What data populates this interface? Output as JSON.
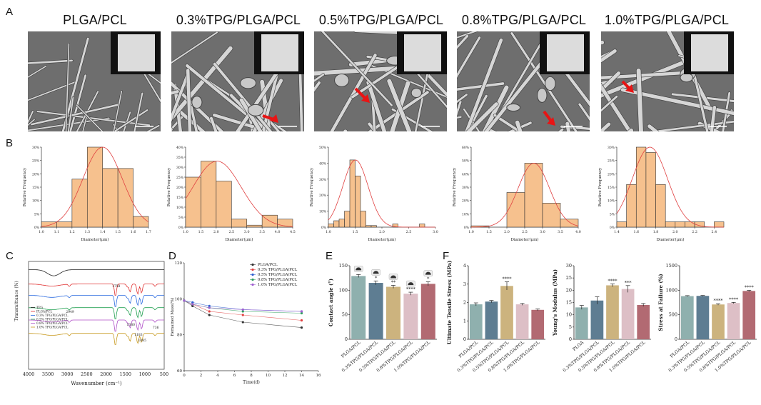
{
  "panel_letters": {
    "A": "A",
    "B": "B",
    "C": "C",
    "D": "D",
    "E": "E",
    "F": "F"
  },
  "sem_titles": [
    "PLGA/PCL",
    "0.3%TPG/PLGA/PCL",
    "0.5%TPG/PLGA/PCL",
    "0.8%TPG/PLGA/PCL",
    "1.0%TPG/PLGA/PCL"
  ],
  "chart_data": [
    {
      "id": "B1",
      "type": "bar",
      "xlabel": "Diameter(μm)",
      "ylabel": "Relative Frequency",
      "categories": [
        1.05,
        1.15,
        1.25,
        1.35,
        1.45,
        1.55,
        1.65
      ],
      "values": [
        2,
        2,
        18,
        30,
        22,
        22,
        4
      ],
      "xlim": [
        1.0,
        1.7
      ],
      "xticks": [
        1.0,
        1.1,
        1.2,
        1.3,
        1.4,
        1.5,
        1.6,
        1.7
      ],
      "ylim": [
        0,
        30
      ],
      "yticks": [
        0,
        5,
        10,
        15,
        20,
        25,
        30
      ],
      "ytick_suffix": "%"
    },
    {
      "id": "B2",
      "type": "bar",
      "xlabel": "Diameter(μm)",
      "ylabel": "Relative Frequency",
      "categories": [
        1.25,
        1.75,
        2.25,
        2.75,
        3.25,
        3.75,
        4.25
      ],
      "values": [
        25,
        33,
        23,
        4,
        1,
        6,
        4
      ],
      "xlim": [
        1.0,
        4.5
      ],
      "xticks": [
        1.0,
        1.5,
        2.0,
        2.5,
        3.0,
        3.5,
        4.0,
        4.5
      ],
      "ylim": [
        0,
        40
      ],
      "yticks": [
        0,
        5,
        10,
        15,
        20,
        25,
        30,
        35,
        40
      ],
      "ytick_suffix": "%"
    },
    {
      "id": "B3",
      "type": "bar",
      "xlabel": "Diameter(μm)",
      "ylabel": "Relative Frequency",
      "categories": [
        1.05,
        1.15,
        1.25,
        1.35,
        1.45,
        1.55,
        1.65,
        1.75,
        1.85,
        2.25,
        2.75
      ],
      "values": [
        2,
        4,
        5,
        10,
        42,
        32,
        10,
        1,
        1,
        2,
        2
      ],
      "xlim": [
        1.0,
        3.0
      ],
      "xticks": [
        1.0,
        1.5,
        2.0,
        2.5,
        3.0
      ],
      "ylim": [
        0,
        50
      ],
      "yticks": [
        0,
        10,
        20,
        30,
        40,
        50
      ],
      "ytick_suffix": "%"
    },
    {
      "id": "B4",
      "type": "bar",
      "xlabel": "Diameter(μm)",
      "ylabel": "Relative Frequency",
      "categories": [
        1.25,
        2.25,
        2.75,
        3.25,
        3.75
      ],
      "values": [
        1,
        26,
        48,
        18,
        6
      ],
      "xlim": [
        1.0,
        4.0
      ],
      "xticks": [
        1.0,
        1.5,
        2.0,
        2.5,
        3.0,
        3.5,
        4.0
      ],
      "ylim": [
        0,
        60
      ],
      "yticks": [
        0,
        10,
        20,
        30,
        40,
        50,
        60
      ],
      "ytick_suffix": "%"
    },
    {
      "id": "B5",
      "type": "bar",
      "xlabel": "Diameter(μm)",
      "ylabel": "Relative Frequency",
      "categories": [
        1.45,
        1.55,
        1.65,
        1.75,
        1.85,
        1.95,
        2.05,
        2.15,
        2.25,
        2.45
      ],
      "values": [
        2,
        16,
        30,
        28,
        16,
        2,
        2,
        2,
        2,
        2
      ],
      "xlim": [
        1.4,
        2.5
      ],
      "xticks": [
        1.4,
        1.6,
        1.8,
        2.0,
        2.2,
        2.4
      ],
      "ylim": [
        0,
        30
      ],
      "yticks": [
        0,
        5,
        10,
        15,
        20,
        25,
        30
      ],
      "ytick_suffix": "%"
    },
    {
      "id": "C",
      "type": "line",
      "xlabel": "Wavenumber (cm⁻¹)",
      "ylabel": "Transmittance (%)",
      "xlim": [
        4000,
        500
      ],
      "xticks": [
        4000,
        3500,
        3000,
        2500,
        2000,
        1500,
        1000,
        500
      ],
      "legend": [
        "TPG",
        "PLGA/PCL",
        "0.3% TPG/PLGA/PCL",
        "0.5% TPG/PLGA/PCL",
        "0.8% TPG/PLGA/PCL",
        "1.0% TPG/PLGA/PCL"
      ],
      "colors": [
        "#222222",
        "#e03030",
        "#2b6be0",
        "#20a050",
        "#b050c8",
        "#c89a20"
      ],
      "offsets": [
        97,
        83,
        72,
        60,
        48,
        35
      ],
      "peaks": [
        [
          "1758",
          1758
        ],
        [
          "1380",
          "1380"
        ],
        [
          "1085",
          "1085"
        ],
        [
          "1183",
          "1183"
        ],
        [
          "736",
          "736"
        ],
        [
          "2949",
          "2949"
        ]
      ]
    },
    {
      "id": "D",
      "type": "line",
      "xlabel": "Time(d)",
      "ylabel": "Remained Mass(%)",
      "xlim": [
        0,
        16
      ],
      "xticks": [
        0,
        2,
        4,
        6,
        8,
        10,
        12,
        14,
        16
      ],
      "ylim": [
        60,
        120
      ],
      "yticks": [
        60,
        80,
        100,
        120
      ],
      "x": [
        0,
        1,
        3,
        7,
        14
      ],
      "series": [
        {
          "name": "PLGA/PCL",
          "color": "#333333",
          "marker": "square",
          "values": [
            99,
            96,
            91,
            87,
            84
          ]
        },
        {
          "name": "0.3% TPG/PLGA/PCL",
          "color": "#e04040",
          "marker": "circle",
          "values": [
            99,
            97,
            93,
            91,
            88
          ]
        },
        {
          "name": "0.5% TPG/PLGA/PCL",
          "color": "#3060d0",
          "marker": "triangle",
          "values": [
            99,
            98,
            96,
            94,
            93
          ]
        },
        {
          "name": "0.8% TPG/PLGA/PCL",
          "color": "#30a060",
          "marker": "triangle-down",
          "values": [
            99,
            97,
            95,
            93,
            92
          ]
        },
        {
          "name": "1.0% TPG/PLGA/PCL",
          "color": "#a060d0",
          "marker": "diamond",
          "values": [
            99,
            97,
            95,
            94,
            93
          ]
        }
      ]
    },
    {
      "id": "E",
      "type": "bar",
      "ylabel": "Contact angle (°)",
      "categories": [
        "PLGA/PCL",
        "0.3%TPG/PLGA/PCL",
        "0.5%TPG/PLGA/PCL",
        "0.8%TPG/PLGA/PCL",
        "1.0%TPG/PLGA/PCL"
      ],
      "values": [
        129,
        115,
        107,
        93,
        113
      ],
      "errors": [
        3,
        4,
        3,
        3,
        4
      ],
      "colors": [
        "#8fb0ae",
        "#5e7d92",
        "#ccb37e",
        "#ddbfc6",
        "#b26a72"
      ],
      "sig": [
        "",
        "*",
        "**",
        "****",
        "*"
      ],
      "ylim": [
        0,
        150
      ],
      "yticks": [
        0,
        50,
        100,
        150
      ]
    },
    {
      "id": "F1",
      "type": "bar",
      "ylabel": "Ultimate Tensile Stress (MPa)",
      "categories": [
        "PLGA/PCL",
        "0.3%TPG/PLGA/PCL",
        "0.5%TPG/PLGA/PCL",
        "0.8%TPG/PLGA/PCL",
        "1.0%TPG/PLGA/PCL"
      ],
      "values": [
        1.9,
        2.05,
        2.9,
        1.9,
        1.6
      ],
      "errors": [
        0.08,
        0.06,
        0.22,
        0.05,
        0.05
      ],
      "colors": [
        "#8fb0ae",
        "#5e7d92",
        "#ccb37e",
        "#ddbfc6",
        "#b26a72"
      ],
      "sig": [
        "",
        "",
        "****",
        "",
        ""
      ],
      "ylim": [
        0,
        4
      ],
      "yticks": [
        0,
        1,
        2,
        3,
        4
      ]
    },
    {
      "id": "F2",
      "type": "bar",
      "ylabel": "Young's Modulus (MPa)",
      "categories": [
        "PLGA",
        "0.3%TPG/PLGA/PCL",
        "0.5%TPG/PLGA/PCL",
        "0.8%TPG/PLGA/PCL",
        "1.0%TPG/PLGA/PCL"
      ],
      "values": [
        13,
        15.8,
        22,
        20.5,
        14
      ],
      "errors": [
        0.8,
        1.5,
        0.6,
        1.4,
        0.6
      ],
      "colors": [
        "#8fb0ae",
        "#5e7d92",
        "#ccb37e",
        "#ddbfc6",
        "#b26a72"
      ],
      "sig": [
        "",
        "",
        "****",
        "***",
        ""
      ],
      "ylim": [
        0,
        30
      ],
      "yticks": [
        0,
        5,
        10,
        15,
        20,
        25,
        30
      ]
    },
    {
      "id": "F3",
      "type": "bar",
      "ylabel": "Stress at Failure (%)",
      "categories": [
        "PLGA/PCL",
        "0.3%TPG/PLGA/PCL",
        "0.5%TPG/PLGA/PCL",
        "0.8%TPG/PLGA/PCL",
        "1.0%TPG/PLGA/PCL"
      ],
      "values": [
        880,
        885,
        710,
        740,
        985
      ],
      "errors": [
        10,
        8,
        15,
        12,
        12
      ],
      "colors": [
        "#8fb0ae",
        "#5e7d92",
        "#ccb37e",
        "#ddbfc6",
        "#b26a72"
      ],
      "sig": [
        "",
        "",
        "****",
        "****",
        "****"
      ],
      "ylim": [
        0,
        1500
      ],
      "yticks": [
        0,
        500,
        1000,
        1500
      ]
    }
  ]
}
